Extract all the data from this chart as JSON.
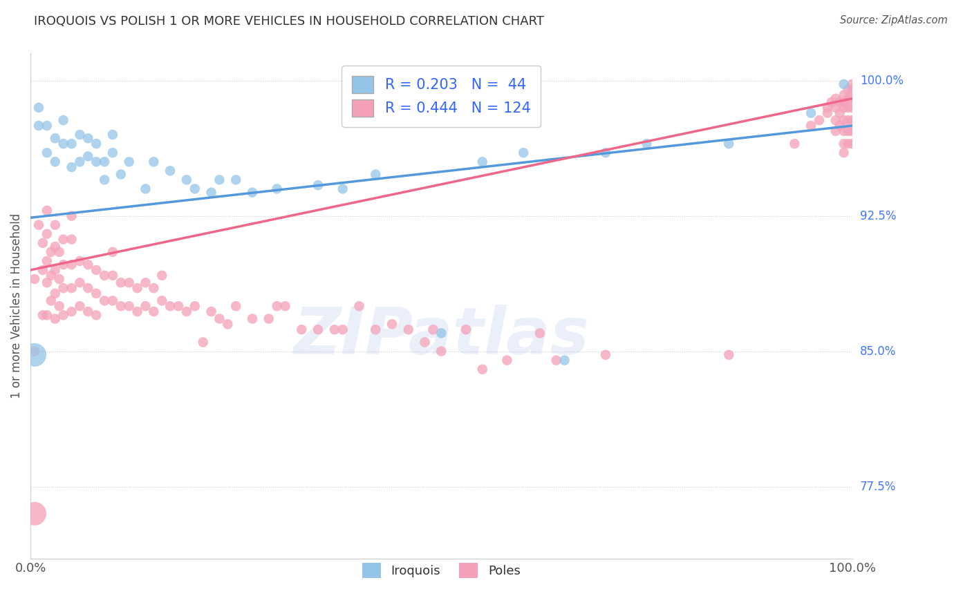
{
  "title": "IROQUOIS VS POLISH 1 OR MORE VEHICLES IN HOUSEHOLD CORRELATION CHART",
  "source": "Source: ZipAtlas.com",
  "ylabel": "1 or more Vehicles in Household",
  "ytick_labels": [
    "77.5%",
    "85.0%",
    "92.5%",
    "100.0%"
  ],
  "ytick_values": [
    0.775,
    0.85,
    0.925,
    1.0
  ],
  "xlim": [
    0.0,
    1.0
  ],
  "ylim": [
    0.735,
    1.015
  ],
  "iroquois_color": "#94C4E8",
  "poles_color": "#F4A0B8",
  "iroquois_line_color": "#5599DD",
  "poles_line_color": "#EE6688",
  "background_color": "#FFFFFF",
  "watermark": "ZIPatlas",
  "iroquois_R": 0.203,
  "iroquois_N": 44,
  "poles_R": 0.444,
  "poles_N": 124,
  "iroquois_line_x0": 0.0,
  "iroquois_line_y0": 0.924,
  "iroquois_line_x1": 1.0,
  "iroquois_line_y1": 0.975,
  "poles_line_x0": 0.0,
  "poles_line_y0": 0.895,
  "poles_line_x1": 1.0,
  "poles_line_y1": 0.99,
  "iroquois_pts": [
    [
      0.01,
      0.975
    ],
    [
      0.01,
      0.985
    ],
    [
      0.02,
      0.96
    ],
    [
      0.02,
      0.975
    ],
    [
      0.03,
      0.968
    ],
    [
      0.03,
      0.955
    ],
    [
      0.04,
      0.965
    ],
    [
      0.04,
      0.978
    ],
    [
      0.05,
      0.952
    ],
    [
      0.05,
      0.965
    ],
    [
      0.06,
      0.955
    ],
    [
      0.06,
      0.97
    ],
    [
      0.07,
      0.958
    ],
    [
      0.07,
      0.968
    ],
    [
      0.08,
      0.955
    ],
    [
      0.08,
      0.965
    ],
    [
      0.09,
      0.955
    ],
    [
      0.09,
      0.945
    ],
    [
      0.1,
      0.96
    ],
    [
      0.1,
      0.97
    ],
    [
      0.11,
      0.948
    ],
    [
      0.12,
      0.955
    ],
    [
      0.14,
      0.94
    ],
    [
      0.15,
      0.955
    ],
    [
      0.17,
      0.95
    ],
    [
      0.19,
      0.945
    ],
    [
      0.2,
      0.94
    ],
    [
      0.22,
      0.938
    ],
    [
      0.23,
      0.945
    ],
    [
      0.25,
      0.945
    ],
    [
      0.27,
      0.938
    ],
    [
      0.3,
      0.94
    ],
    [
      0.35,
      0.942
    ],
    [
      0.38,
      0.94
    ],
    [
      0.42,
      0.948
    ],
    [
      0.5,
      0.86
    ],
    [
      0.55,
      0.955
    ],
    [
      0.6,
      0.96
    ],
    [
      0.65,
      0.845
    ],
    [
      0.7,
      0.96
    ],
    [
      0.75,
      0.965
    ],
    [
      0.85,
      0.965
    ],
    [
      0.95,
      0.982
    ],
    [
      0.99,
      0.998
    ]
  ],
  "iroquois_sizes": [
    80,
    80,
    100,
    80,
    80,
    80,
    80,
    80,
    80,
    80,
    80,
    80,
    80,
    80,
    80,
    80,
    80,
    80,
    80,
    80,
    80,
    80,
    80,
    80,
    80,
    80,
    80,
    80,
    80,
    80,
    80,
    80,
    80,
    80,
    80,
    80,
    80,
    80,
    80,
    80,
    80,
    80,
    80,
    80
  ],
  "poles_pts": [
    [
      0.005,
      0.85
    ],
    [
      0.005,
      0.89
    ],
    [
      0.01,
      0.92
    ],
    [
      0.015,
      0.87
    ],
    [
      0.015,
      0.895
    ],
    [
      0.015,
      0.91
    ],
    [
      0.02,
      0.87
    ],
    [
      0.02,
      0.888
    ],
    [
      0.02,
      0.9
    ],
    [
      0.02,
      0.915
    ],
    [
      0.02,
      0.928
    ],
    [
      0.025,
      0.878
    ],
    [
      0.025,
      0.892
    ],
    [
      0.025,
      0.905
    ],
    [
      0.03,
      0.868
    ],
    [
      0.03,
      0.882
    ],
    [
      0.03,
      0.895
    ],
    [
      0.03,
      0.908
    ],
    [
      0.03,
      0.92
    ],
    [
      0.035,
      0.875
    ],
    [
      0.035,
      0.89
    ],
    [
      0.035,
      0.905
    ],
    [
      0.04,
      0.87
    ],
    [
      0.04,
      0.885
    ],
    [
      0.04,
      0.898
    ],
    [
      0.04,
      0.912
    ],
    [
      0.05,
      0.872
    ],
    [
      0.05,
      0.885
    ],
    [
      0.05,
      0.898
    ],
    [
      0.05,
      0.912
    ],
    [
      0.05,
      0.925
    ],
    [
      0.06,
      0.875
    ],
    [
      0.06,
      0.888
    ],
    [
      0.06,
      0.9
    ],
    [
      0.07,
      0.872
    ],
    [
      0.07,
      0.885
    ],
    [
      0.07,
      0.898
    ],
    [
      0.08,
      0.87
    ],
    [
      0.08,
      0.882
    ],
    [
      0.08,
      0.895
    ],
    [
      0.09,
      0.878
    ],
    [
      0.09,
      0.892
    ],
    [
      0.1,
      0.878
    ],
    [
      0.1,
      0.892
    ],
    [
      0.1,
      0.905
    ],
    [
      0.11,
      0.875
    ],
    [
      0.11,
      0.888
    ],
    [
      0.12,
      0.875
    ],
    [
      0.12,
      0.888
    ],
    [
      0.13,
      0.872
    ],
    [
      0.13,
      0.885
    ],
    [
      0.14,
      0.875
    ],
    [
      0.14,
      0.888
    ],
    [
      0.15,
      0.872
    ],
    [
      0.15,
      0.885
    ],
    [
      0.16,
      0.878
    ],
    [
      0.16,
      0.892
    ],
    [
      0.17,
      0.875
    ],
    [
      0.18,
      0.875
    ],
    [
      0.19,
      0.872
    ],
    [
      0.2,
      0.875
    ],
    [
      0.21,
      0.855
    ],
    [
      0.22,
      0.872
    ],
    [
      0.23,
      0.868
    ],
    [
      0.24,
      0.865
    ],
    [
      0.25,
      0.875
    ],
    [
      0.27,
      0.868
    ],
    [
      0.29,
      0.868
    ],
    [
      0.3,
      0.875
    ],
    [
      0.31,
      0.875
    ],
    [
      0.33,
      0.862
    ],
    [
      0.35,
      0.862
    ],
    [
      0.37,
      0.862
    ],
    [
      0.38,
      0.862
    ],
    [
      0.4,
      0.875
    ],
    [
      0.42,
      0.862
    ],
    [
      0.44,
      0.865
    ],
    [
      0.46,
      0.862
    ],
    [
      0.48,
      0.855
    ],
    [
      0.49,
      0.862
    ],
    [
      0.5,
      0.85
    ],
    [
      0.53,
      0.862
    ],
    [
      0.55,
      0.84
    ],
    [
      0.58,
      0.845
    ],
    [
      0.62,
      0.86
    ],
    [
      0.64,
      0.845
    ],
    [
      0.7,
      0.848
    ],
    [
      0.85,
      0.848
    ],
    [
      0.93,
      0.965
    ],
    [
      0.95,
      0.975
    ],
    [
      0.96,
      0.978
    ],
    [
      0.97,
      0.982
    ],
    [
      0.97,
      0.985
    ],
    [
      0.975,
      0.988
    ],
    [
      0.98,
      0.972
    ],
    [
      0.98,
      0.978
    ],
    [
      0.98,
      0.985
    ],
    [
      0.98,
      0.99
    ],
    [
      0.985,
      0.975
    ],
    [
      0.985,
      0.982
    ],
    [
      0.985,
      0.988
    ],
    [
      0.99,
      0.96
    ],
    [
      0.99,
      0.965
    ],
    [
      0.99,
      0.972
    ],
    [
      0.99,
      0.978
    ],
    [
      0.99,
      0.985
    ],
    [
      0.99,
      0.988
    ],
    [
      0.99,
      0.992
    ],
    [
      0.995,
      0.965
    ],
    [
      0.995,
      0.972
    ],
    [
      0.995,
      0.978
    ],
    [
      0.995,
      0.985
    ],
    [
      0.995,
      0.99
    ],
    [
      0.995,
      0.995
    ],
    [
      1.0,
      0.965
    ],
    [
      1.0,
      0.972
    ],
    [
      1.0,
      0.978
    ],
    [
      1.0,
      0.985
    ],
    [
      1.0,
      0.99
    ],
    [
      1.0,
      0.995
    ],
    [
      1.0,
      0.998
    ]
  ],
  "iroquois_big_pts": [
    [
      0.005,
      0.848
    ]
  ],
  "poles_big_pts": [
    [
      0.005,
      0.76
    ]
  ]
}
